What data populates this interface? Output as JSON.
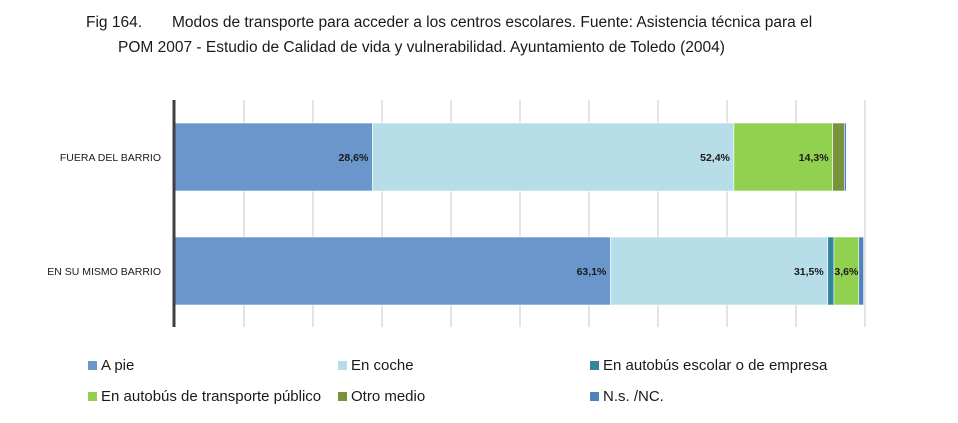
{
  "caption": {
    "fig": "Fig 164.",
    "line1": "Modos de transporte para acceder a los centros escolares. Fuente: Asistencia técnica para el",
    "line2": "POM 2007 - Estudio de Calidad de vida y vulnerabilidad. Ayuntamiento de Toledo (2004)"
  },
  "chart_data": {
    "type": "bar",
    "orientation": "horizontal",
    "stacked": "percent",
    "categories": [
      "FUERA DEL BARRIO",
      "EN SU MISMO BARRIO"
    ],
    "series": [
      {
        "name": "A pie",
        "color": "#6b96cb",
        "values": [
          28.6,
          63.1
        ],
        "labels": [
          "28,6%",
          "63,1%"
        ]
      },
      {
        "name": "En coche",
        "color": "#b7dde8",
        "values": [
          52.4,
          31.5
        ],
        "labels": [
          "52,4%",
          "31,5%"
        ]
      },
      {
        "name": "En autobús escolar o de empresa",
        "color": "#31859c",
        "values": [
          0.0,
          0.9
        ],
        "labels": [
          "",
          ""
        ]
      },
      {
        "name": "En autobús de transporte público",
        "color": "#92d050",
        "values": [
          14.3,
          3.6
        ],
        "labels": [
          "14,3%",
          "3,6%"
        ]
      },
      {
        "name": "Otro medio",
        "color": "#77933c",
        "values": [
          1.7,
          0.0
        ],
        "labels": [
          "",
          ""
        ]
      },
      {
        "name": "N.s. /NC.",
        "color": "#4f81bd",
        "values": [
          0.3,
          0.7
        ],
        "labels": [
          "",
          ""
        ]
      }
    ],
    "xlim": [
      0,
      100
    ],
    "grid": "vertical",
    "legend_position": "bottom"
  }
}
